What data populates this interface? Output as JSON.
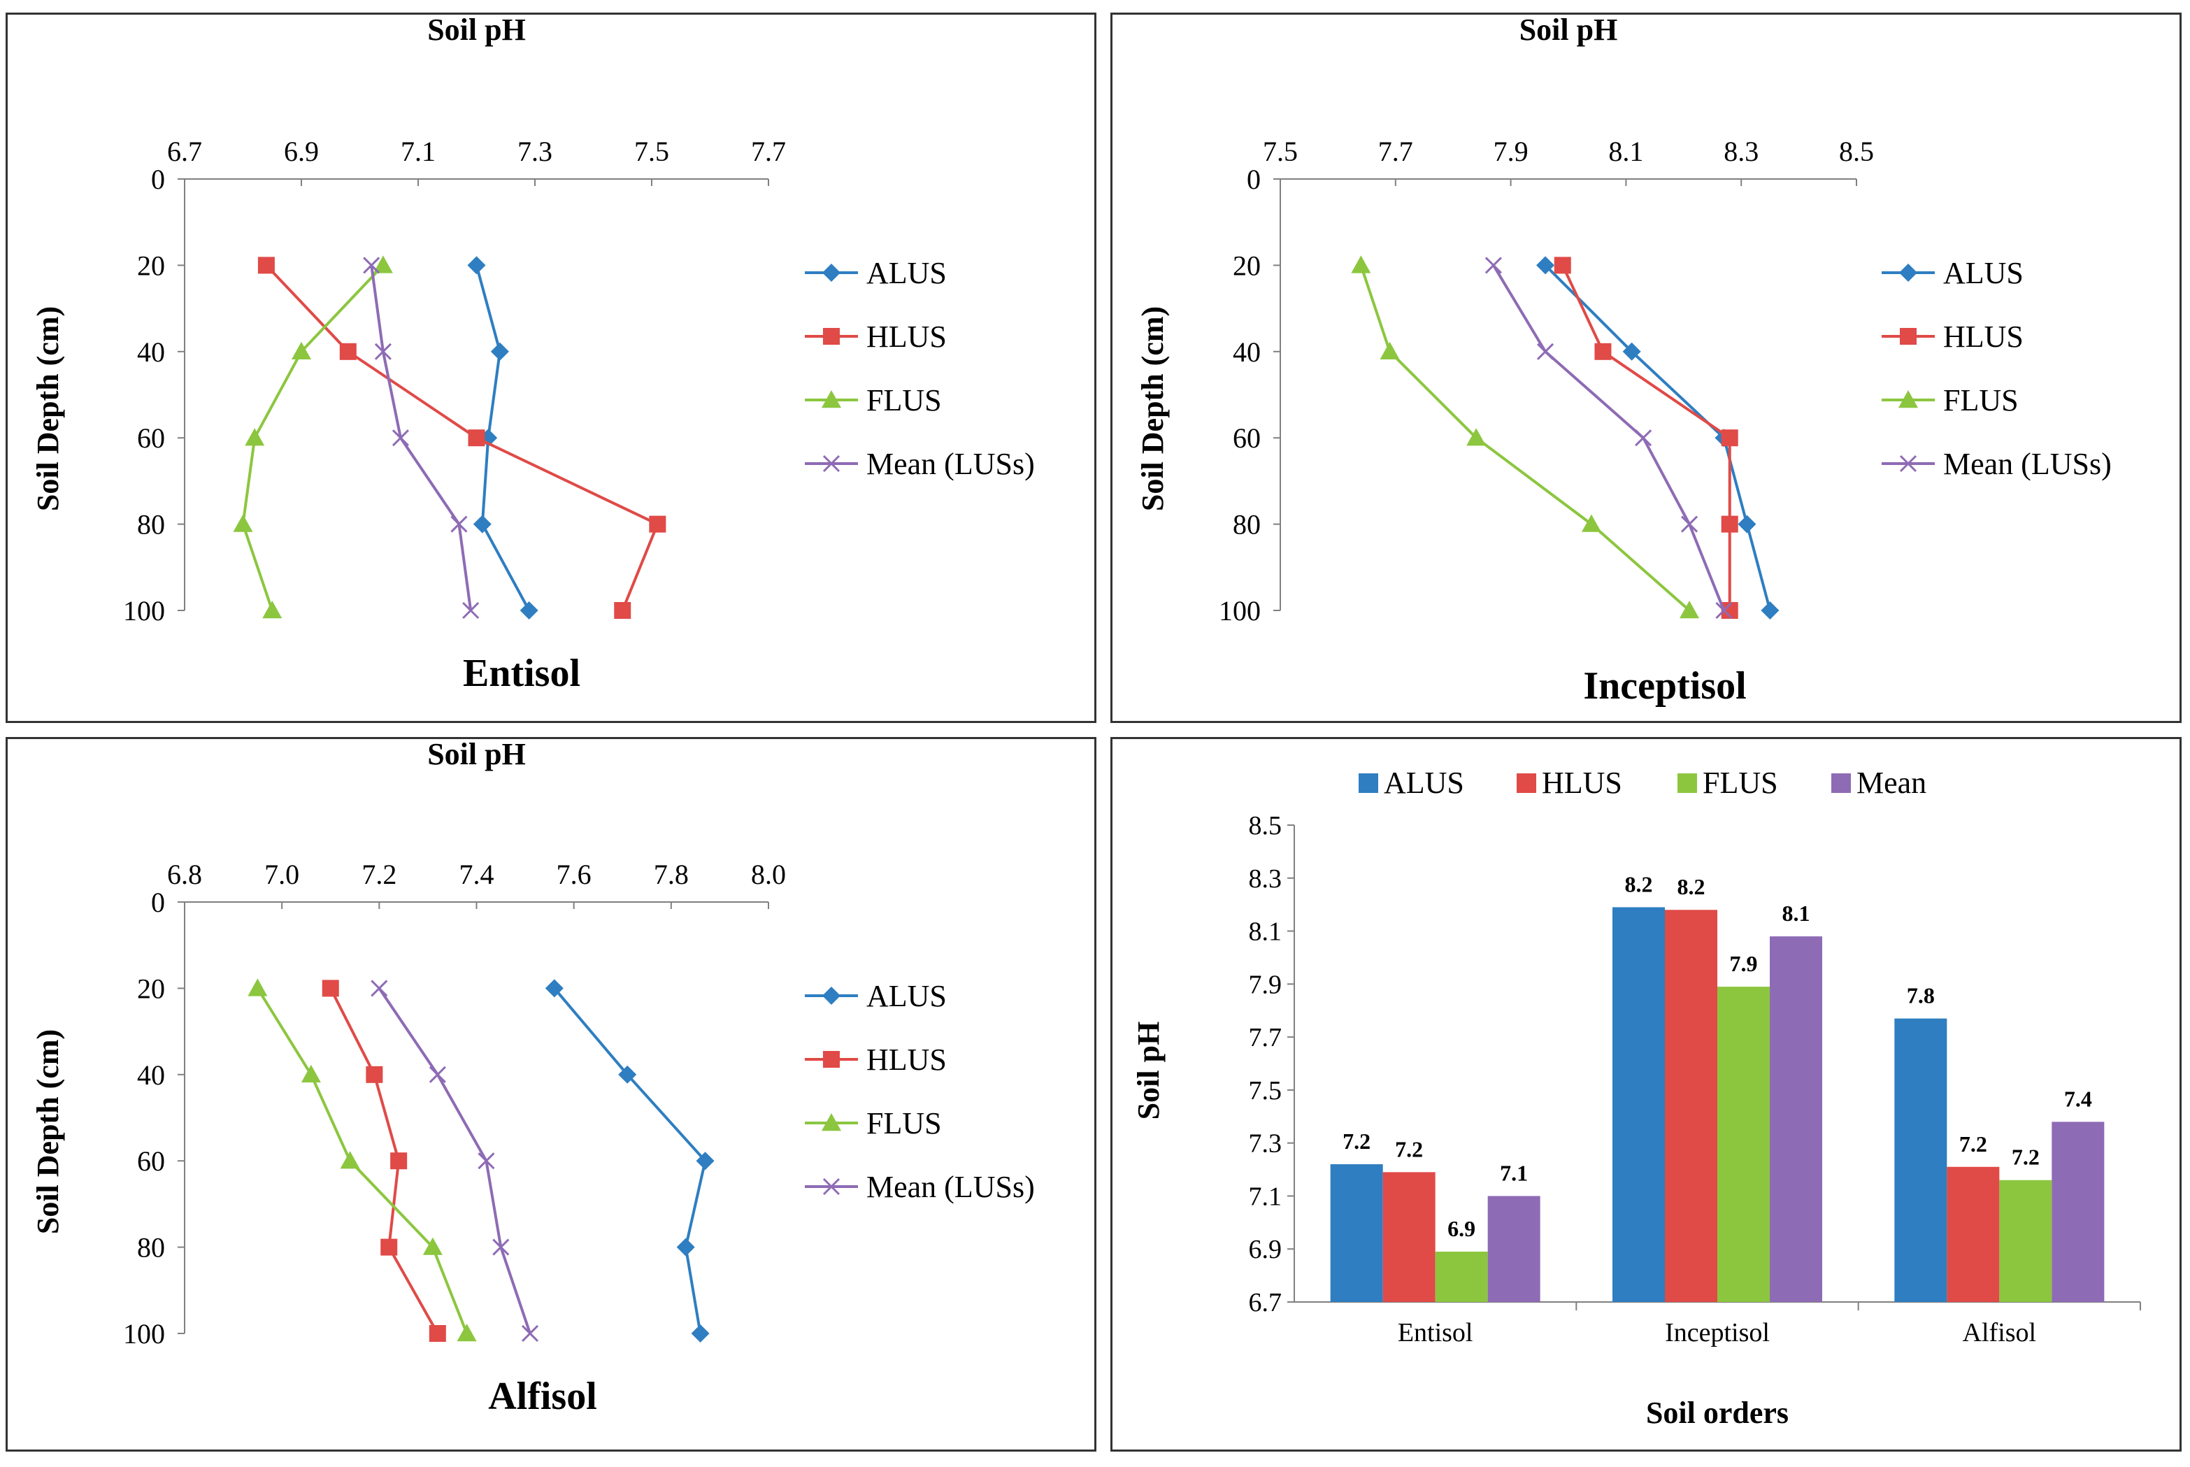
{
  "chart_data": [
    {
      "type": "line",
      "title": "Entisol",
      "xlabel": "Soil pH",
      "ylabel": "Soil Depth (cm)",
      "xlim": [
        6.7,
        7.7
      ],
      "xticks": [
        "6.7",
        "6.9",
        "7.1",
        "7.3",
        "7.5",
        "7.7"
      ],
      "ylim": [
        0,
        100
      ],
      "yticks": [
        "0",
        "20",
        "40",
        "60",
        "80",
        "100"
      ],
      "depth": [
        20,
        40,
        60,
        80,
        100
      ],
      "series": [
        {
          "name": "ALUS",
          "color": "#2E7EC1",
          "marker": "diamond",
          "values": [
            7.2,
            7.24,
            7.22,
            7.21,
            7.29
          ]
        },
        {
          "name": "HLUS",
          "color": "#E04A47",
          "marker": "square",
          "values": [
            6.84,
            6.98,
            7.2,
            7.51,
            7.45
          ]
        },
        {
          "name": "FLUS",
          "color": "#8CC63F",
          "marker": "triangle",
          "values": [
            7.04,
            6.9,
            6.82,
            6.8,
            6.85
          ]
        },
        {
          "name": "Mean (LUSs)",
          "color": "#8E6BB5",
          "marker": "x",
          "values": [
            7.02,
            7.04,
            7.07,
            7.17,
            7.19
          ]
        }
      ]
    },
    {
      "type": "line",
      "title": "Inceptisol",
      "xlabel": "Soil pH",
      "ylabel": "Soil Depth (cm)",
      "xlim": [
        7.5,
        8.5
      ],
      "xticks": [
        "7.5",
        "7.7",
        "7.9",
        "8.1",
        "8.3",
        "8.5"
      ],
      "ylim": [
        0,
        100
      ],
      "yticks": [
        "0",
        "20",
        "40",
        "60",
        "80",
        "100"
      ],
      "depth": [
        20,
        40,
        60,
        80,
        100
      ],
      "series": [
        {
          "name": "ALUS",
          "color": "#2E7EC1",
          "marker": "diamond",
          "values": [
            7.96,
            8.11,
            8.27,
            8.31,
            8.35
          ]
        },
        {
          "name": "HLUS",
          "color": "#E04A47",
          "marker": "square",
          "values": [
            7.99,
            8.06,
            8.28,
            8.28,
            8.28
          ]
        },
        {
          "name": "FLUS",
          "color": "#8CC63F",
          "marker": "triangle",
          "values": [
            7.64,
            7.69,
            7.84,
            8.04,
            8.21
          ]
        },
        {
          "name": "Mean (LUSs)",
          "color": "#8E6BB5",
          "marker": "x",
          "values": [
            7.87,
            7.96,
            8.13,
            8.21,
            8.27
          ]
        }
      ]
    },
    {
      "type": "line",
      "title": "Alfisol",
      "xlabel": "Soil pH",
      "ylabel": "Soil Depth (cm)",
      "xlim": [
        6.8,
        8.0
      ],
      "xticks": [
        "6.8",
        "7.0",
        "7.2",
        "7.4",
        "7.6",
        "7.8",
        "8.0"
      ],
      "ylim": [
        0,
        100
      ],
      "yticks": [
        "0",
        "20",
        "40",
        "60",
        "80",
        "100"
      ],
      "depth": [
        20,
        40,
        60,
        80,
        100
      ],
      "series": [
        {
          "name": "ALUS",
          "color": "#2E7EC1",
          "marker": "diamond",
          "values": [
            7.56,
            7.71,
            7.87,
            7.83,
            7.86
          ]
        },
        {
          "name": "HLUS",
          "color": "#E04A47",
          "marker": "square",
          "values": [
            7.1,
            7.19,
            7.24,
            7.22,
            7.32
          ]
        },
        {
          "name": "FLUS",
          "color": "#8CC63F",
          "marker": "triangle",
          "values": [
            6.95,
            7.06,
            7.14,
            7.31,
            7.38
          ]
        },
        {
          "name": "Mean (LUSs)",
          "color": "#8E6BB5",
          "marker": "x",
          "values": [
            7.2,
            7.32,
            7.42,
            7.45,
            7.51
          ]
        }
      ]
    },
    {
      "type": "bar",
      "title": "",
      "xlabel": "Soil orders",
      "ylabel": "Soil pH",
      "ylim": [
        6.7,
        8.5
      ],
      "yticks": [
        "6.7",
        "6.9",
        "7.1",
        "7.3",
        "7.5",
        "7.7",
        "7.9",
        "8.1",
        "8.3",
        "8.5"
      ],
      "categories": [
        "Entisol",
        "Inceptisol",
        "Alfisol"
      ],
      "legend_position": "top",
      "series": [
        {
          "name": "ALUS",
          "color": "#2E7EC1",
          "values": [
            7.22,
            8.19,
            7.77
          ],
          "labels": [
            "7.2",
            "8.2",
            "7.8"
          ]
        },
        {
          "name": "HLUS",
          "color": "#E04A47",
          "values": [
            7.19,
            8.18,
            7.21
          ],
          "labels": [
            "7.2",
            "8.2",
            "7.2"
          ]
        },
        {
          "name": "FLUS",
          "color": "#8CC63F",
          "values": [
            6.89,
            7.89,
            7.16
          ],
          "labels": [
            "6.9",
            "7.9",
            "7.2"
          ]
        },
        {
          "name": "Mean",
          "color": "#8E6BB5",
          "values": [
            7.1,
            8.08,
            7.38
          ],
          "labels": [
            "7.1",
            "8.1",
            "7.4"
          ]
        }
      ]
    }
  ]
}
